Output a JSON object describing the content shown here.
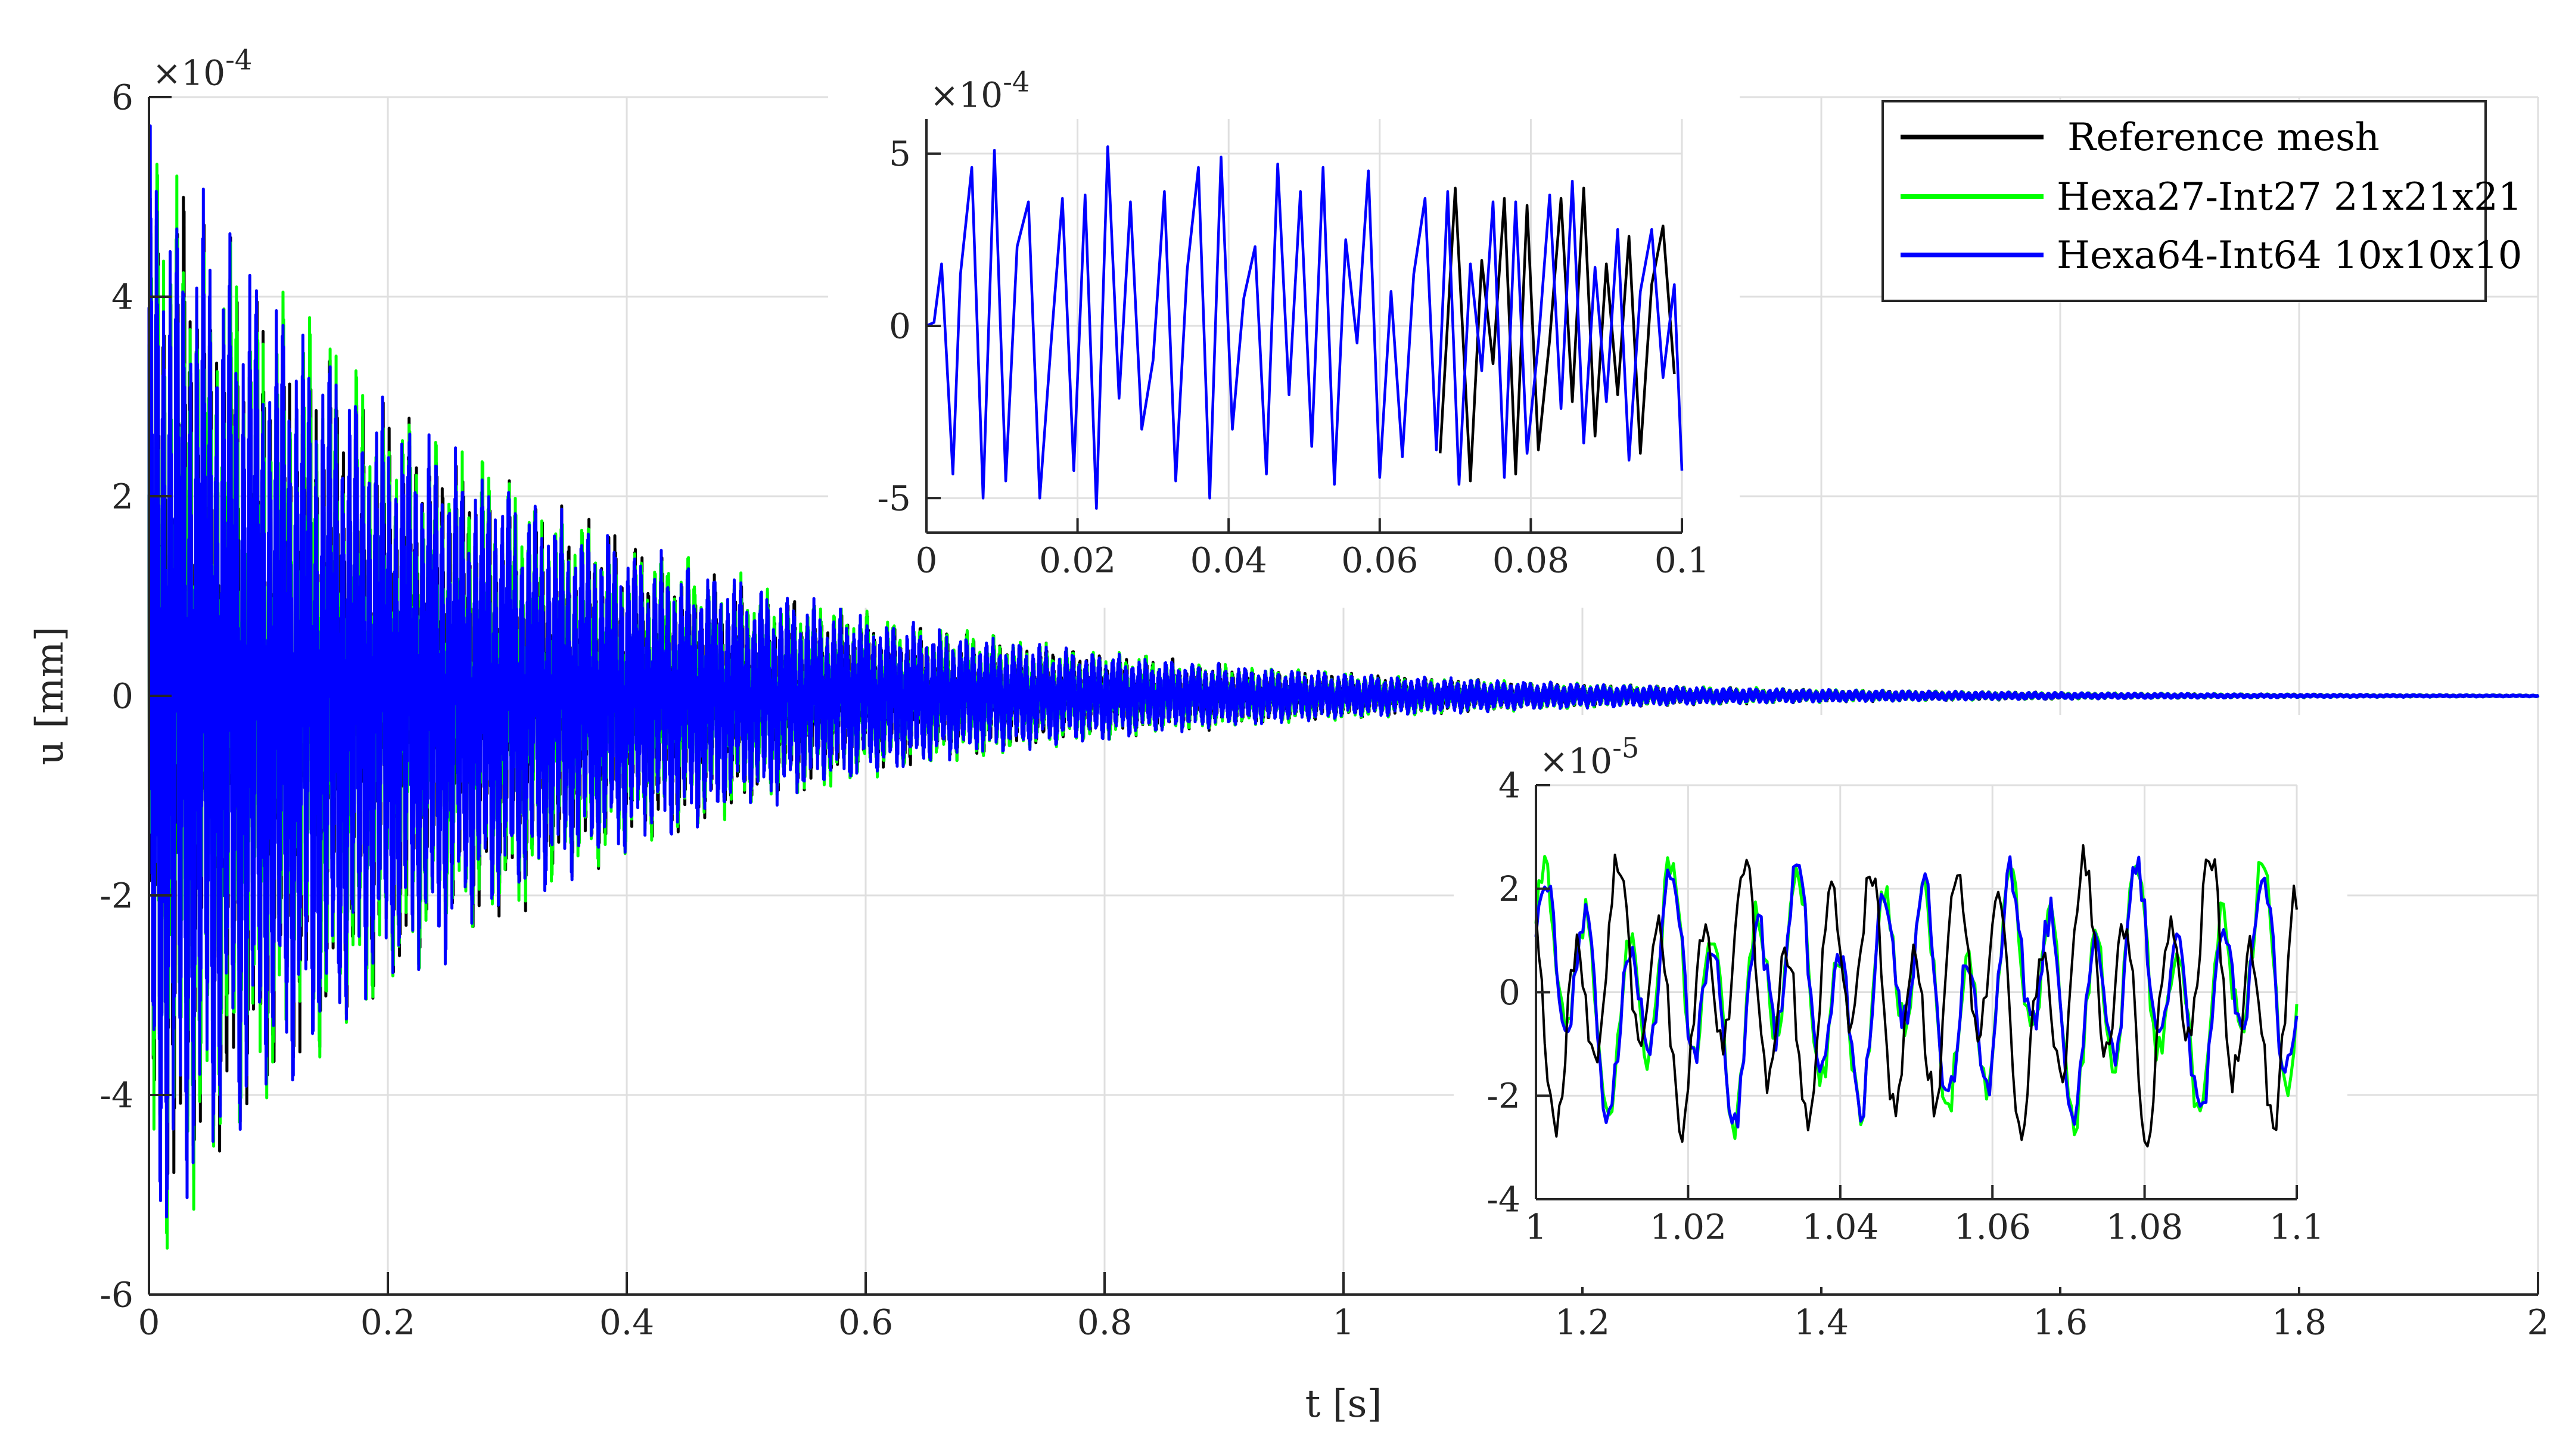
{
  "chart_data": [
    {
      "id": "main",
      "type": "line",
      "xlabel": "t [s]",
      "ylabel": "u [mm]",
      "xlim": [
        0,
        2
      ],
      "ylim": [
        -6,
        6
      ],
      "y_exponent_label": "×10",
      "y_exponent": "-4",
      "xticks": [
        "0",
        "0.2",
        "0.4",
        "0.6",
        "0.8",
        "1",
        "1.2",
        "1.4",
        "1.6",
        "1.8",
        "2"
      ],
      "yticks": [
        "-6",
        "-4",
        "-2",
        "0",
        "2",
        "4",
        "6"
      ],
      "grid": true,
      "legend_position": "top-right",
      "envelope_peak": 5.3,
      "envelope_decay_rate": 3.2,
      "series": [
        {
          "name": "Reference mesh",
          "color": "#000000"
        },
        {
          "name": "Hexa27-Int27 21x21x21",
          "color": "#00ff00"
        },
        {
          "name": "Hexa64-Int64 10x10x10",
          "color": "#0000ff"
        }
      ]
    },
    {
      "id": "inset_start",
      "type": "line",
      "xlim": [
        0,
        0.1
      ],
      "ylim": [
        -6,
        6
      ],
      "y_exponent_label": "×10",
      "y_exponent": "-4",
      "xticks": [
        "0",
        "0.02",
        "0.04",
        "0.06",
        "0.08",
        "0.1"
      ],
      "yticks": [
        "-5",
        "0",
        "5"
      ],
      "grid": true,
      "series": [
        {
          "name": "Hexa64-Int64 10x10x10",
          "color": "#0000ff",
          "x": [
            0,
            0.001,
            0.002,
            0.0035,
            0.0045,
            0.006,
            0.0075,
            0.009,
            0.0105,
            0.012,
            0.0135,
            0.015,
            0.0165,
            0.018,
            0.0195,
            0.021,
            0.0225,
            0.024,
            0.0255,
            0.027,
            0.0285,
            0.03,
            0.0315,
            0.033,
            0.0345,
            0.036,
            0.0375,
            0.039,
            0.0405,
            0.042,
            0.0435,
            0.045,
            0.0465,
            0.048,
            0.0495,
            0.051,
            0.0525,
            0.054,
            0.0555,
            0.057,
            0.0585,
            0.06,
            0.0615,
            0.063,
            0.0645,
            0.066,
            0.0675,
            0.069,
            0.0705,
            0.072,
            0.0735,
            0.075,
            0.0765,
            0.078,
            0.0795,
            0.081,
            0.0825,
            0.084,
            0.0855,
            0.087,
            0.0885,
            0.09,
            0.0915,
            0.093,
            0.0945,
            0.096,
            0.0975,
            0.099,
            0.1
          ],
          "y": [
            0,
            0.1,
            1.8,
            -4.3,
            1.5,
            4.6,
            -5.0,
            5.1,
            -4.5,
            2.3,
            3.6,
            -5.0,
            -0.5,
            3.7,
            -4.2,
            3.8,
            -5.3,
            5.2,
            -2.1,
            3.6,
            -3.0,
            -1.0,
            3.9,
            -4.5,
            1.6,
            4.6,
            -5.0,
            4.9,
            -3.0,
            0.8,
            2.3,
            -4.3,
            4.7,
            -2.0,
            3.9,
            -3.5,
            4.6,
            -4.6,
            2.5,
            -0.5,
            4.5,
            -4.4,
            1.0,
            -3.8,
            1.5,
            3.7,
            -3.6,
            3.9,
            -4.6,
            1.8,
            -1.3,
            3.6,
            -4.4,
            3.6,
            -3.7,
            -0.5,
            3.8,
            -2.4,
            4.2,
            -3.4,
            1.7,
            -2.2,
            2.8,
            -3.9,
            1.0,
            2.8,
            -1.5,
            1.2,
            -4.2
          ]
        },
        {
          "name": "Reference mesh",
          "color": "#000000",
          "x": [
            0.068,
            0.07,
            0.072,
            0.0735,
            0.075,
            0.0765,
            0.078,
            0.0795,
            0.081,
            0.0825,
            0.084,
            0.0855,
            0.087,
            0.0885,
            0.09,
            0.0915,
            0.093,
            0.0945,
            0.096,
            0.0975,
            0.099
          ],
          "y": [
            -3.7,
            4.0,
            -4.5,
            1.9,
            -1.1,
            3.7,
            -4.3,
            3.5,
            -3.6,
            -0.4,
            3.7,
            -2.2,
            4.0,
            -3.2,
            1.8,
            -2.0,
            2.6,
            -3.7,
            1.2,
            2.9,
            -1.4
          ]
        }
      ]
    },
    {
      "id": "inset_end",
      "type": "line",
      "xlim": [
        1,
        1.1
      ],
      "ylim": [
        -4,
        4
      ],
      "y_exponent_label": "×10",
      "y_exponent": "-5",
      "xticks": [
        "1",
        "1.02",
        "1.04",
        "1.06",
        "1.08",
        "1.1"
      ],
      "yticks": [
        "-4",
        "-2",
        "0",
        "2",
        "4"
      ],
      "grid": true,
      "series": [
        {
          "name": "Hexa27-Int27 21x21x21",
          "color": "#00ff00",
          "amplitude": 2.6,
          "phase": 0.35
        },
        {
          "name": "Hexa64-Int64 10x10x10",
          "color": "#0000ff",
          "amplitude": 2.5,
          "phase": 0.3
        },
        {
          "name": "Reference mesh",
          "color": "#000000",
          "amplitude": 2.7,
          "phase": 1.9
        }
      ]
    }
  ]
}
